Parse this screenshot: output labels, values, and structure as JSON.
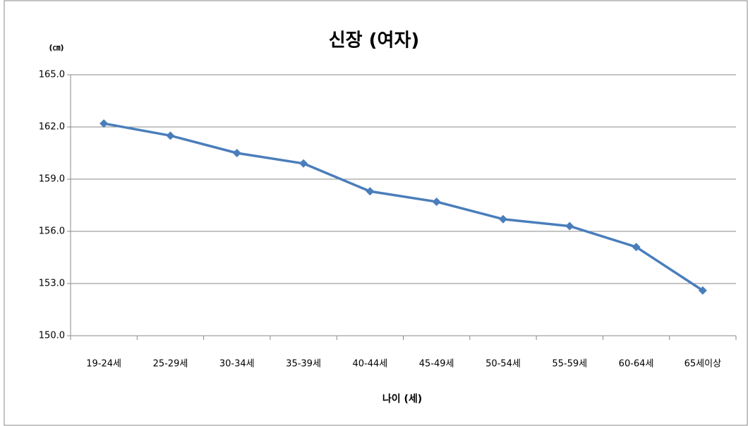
{
  "chart_data": {
    "type": "line",
    "title": "신장 (여자)",
    "y_label": "(㎝)",
    "x_label": "나이 (세)",
    "categories": [
      "19-24세",
      "25-29세",
      "30-34세",
      "35-39세",
      "40-44세",
      "45-49세",
      "50-54세",
      "55-59세",
      "60-64세",
      "65세이상"
    ],
    "series": [
      {
        "name": "신장",
        "color": "#4a7ebb",
        "values": [
          162.2,
          161.5,
          160.5,
          159.9,
          158.3,
          157.7,
          156.7,
          156.3,
          155.1,
          152.6
        ]
      }
    ],
    "ylim": [
      150,
      165
    ],
    "yticks": [
      {
        "value": 150,
        "label": "150.0"
      },
      {
        "value": 153,
        "label": "153.0"
      },
      {
        "value": 156,
        "label": "156.0"
      },
      {
        "value": 159,
        "label": "159.0"
      },
      {
        "value": 162,
        "label": "162.0"
      },
      {
        "value": 165,
        "label": "165.0"
      }
    ],
    "grid": true
  }
}
